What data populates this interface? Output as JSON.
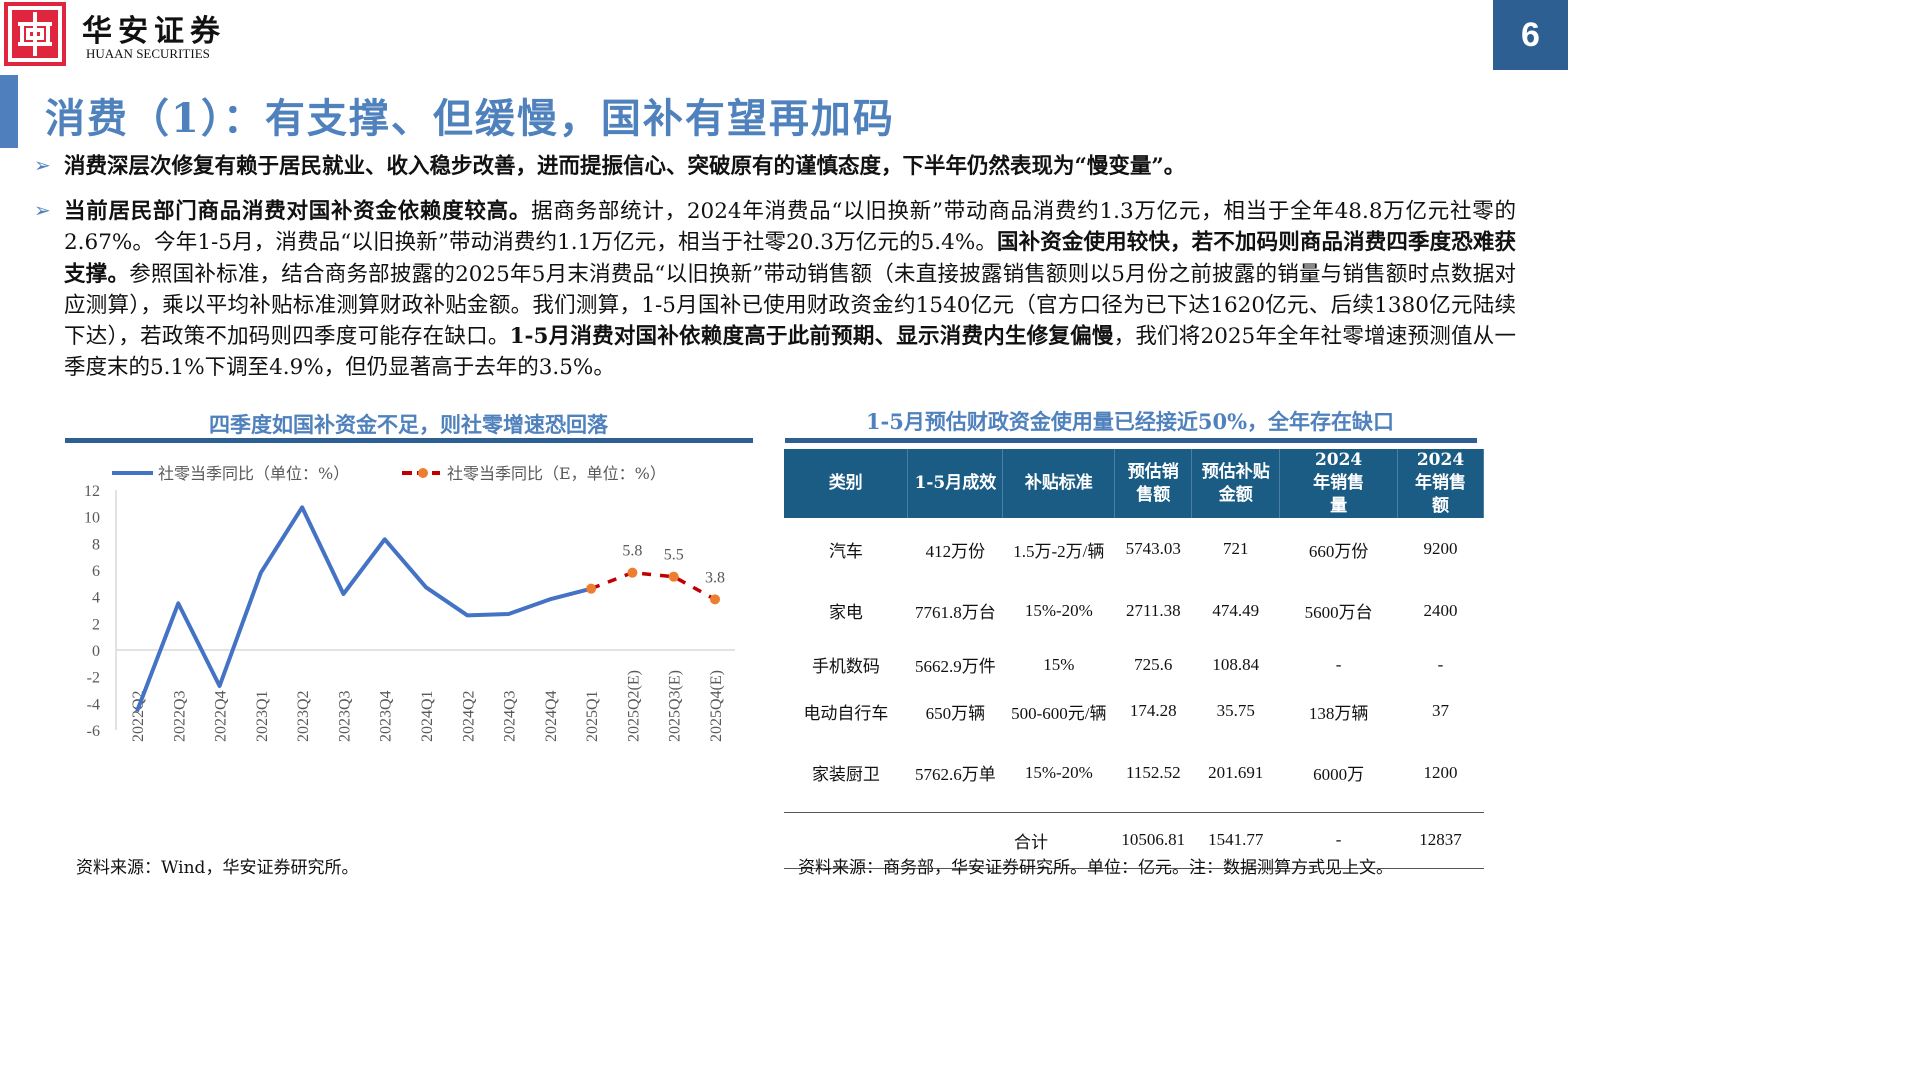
{
  "header": {
    "brand_cn": "华安证券",
    "brand_en": "HUAAN SECURITIES",
    "page_number": "6",
    "title": "消费（1）：有支撑、但缓慢，国补有望再加码"
  },
  "bullets": [
    {
      "text": "消费深层次修复有赖于居民就业、收入稳步改善，进而提振信心、突破原有的谨慎态度，下半年仍然表现为“慢变量”。"
    },
    {
      "segments": [
        {
          "bold": true,
          "text": "当前居民部门商品消费对国补资金依赖度较高。"
        },
        {
          "bold": false,
          "text": "据商务部统计，2024年消费品“以旧换新”带动商品消费约1.3万亿元，相当于全年48.8万亿元社零的2.67%。今年1-5月，消费品“以旧换新”带动消费约1.1万亿元，相当于社零20.3万亿元的5.4%。"
        },
        {
          "bold": true,
          "text": "国补资金使用较快，若不加码则商品消费四季度恐难获支撑。"
        },
        {
          "bold": false,
          "text": "参照国补标准，结合商务部披露的2025年5月末消费品“以旧换新”带动销售额（未直接披露销售额则以5月份之前披露的销量与销售额时点数据对应测算），乘以平均补贴标准测算财政补贴金额。我们测算，1-5月国补已使用财政资金约1540亿元（官方口径为已下达1620亿元、后续1380亿元陆续下达），若政策不加码则四季度可能存在缺口。"
        },
        {
          "bold": true,
          "text": "1-5月消费对国补依赖度高于此前预期、显示消费内生修复偏慢"
        },
        {
          "bold": false,
          "text": "，我们将2025年全年社零增速预测值从一季度末的5.1%下调至4.9%，但仍显著高于去年的3.5%。"
        }
      ]
    }
  ],
  "left_panel": {
    "title": "四季度如国补资金不足，则社零增速恐回落",
    "source": "资料来源：Wind，华安证券研究所。"
  },
  "chart_data": {
    "type": "line",
    "categories": [
      "2022Q2",
      "2022Q3",
      "2022Q4",
      "2023Q1",
      "2023Q2",
      "2023Q3",
      "2023Q4",
      "2024Q1",
      "2024Q2",
      "2024Q3",
      "2024Q4",
      "2025Q1",
      "2025Q2(E)",
      "2025Q3(E)",
      "2025Q4(E)"
    ],
    "series": [
      {
        "name": "社零当季同比（单位：%）",
        "color": "#4472c4",
        "style": "solid",
        "values": [
          -4.6,
          3.5,
          -2.7,
          5.8,
          10.7,
          4.2,
          8.3,
          4.7,
          2.6,
          2.7,
          3.8,
          4.6,
          null,
          null,
          null
        ]
      },
      {
        "name": "社零当季同比（E，单位：%）",
        "color": "#c00000",
        "marker_color": "#ed7d31",
        "style": "dashed",
        "values": [
          null,
          null,
          null,
          null,
          null,
          null,
          null,
          null,
          null,
          null,
          null,
          4.6,
          5.8,
          5.5,
          3.8
        ],
        "data_labels": [
          "",
          "",
          "",
          "",
          "",
          "",
          "",
          "",
          "",
          "",
          "",
          "",
          "5.8",
          "5.5",
          "3.8"
        ]
      }
    ],
    "ylim": [
      -6,
      12
    ],
    "yticks": [
      "12",
      "10",
      "8",
      "6",
      "4",
      "2",
      "0",
      "-2",
      "-4",
      "-6"
    ],
    "legend": "top",
    "grid": false
  },
  "right_panel": {
    "title": "1-5月预估财政资金使用量已经接近50%，全年存在缺口",
    "columns": [
      "类别",
      "1-5月成效",
      "补贴标准",
      "预估销售额",
      "预估补贴金额",
      "2024年销售量",
      "2024年销售额"
    ],
    "rows": [
      [
        "汽车",
        "412万份",
        "1.5万-2万/辆",
        "5743.03",
        "721",
        "660万份",
        "9200"
      ],
      [
        "家电",
        "7761.8万台",
        "15%-20%",
        "2711.38",
        "474.49",
        "5600万台",
        "2400"
      ],
      [
        "手机数码",
        "5662.9万件",
        "15%",
        "725.6",
        "108.84",
        "-",
        "-"
      ],
      [
        "电动自行车",
        "650万辆",
        "500-600元/辆",
        "174.28",
        "35.75",
        "138万辆",
        "37"
      ],
      [
        "家装厨卫",
        "5762.6万单",
        "15%-20%",
        "1152.52",
        "201.691",
        "6000万",
        "1200"
      ]
    ],
    "total": [
      "合计",
      "10506.81",
      "1541.77",
      "-",
      "12837"
    ],
    "source": "资料来源：商务部，华安证券研究所。单位：亿元。注：数据测算方式见上文。"
  }
}
